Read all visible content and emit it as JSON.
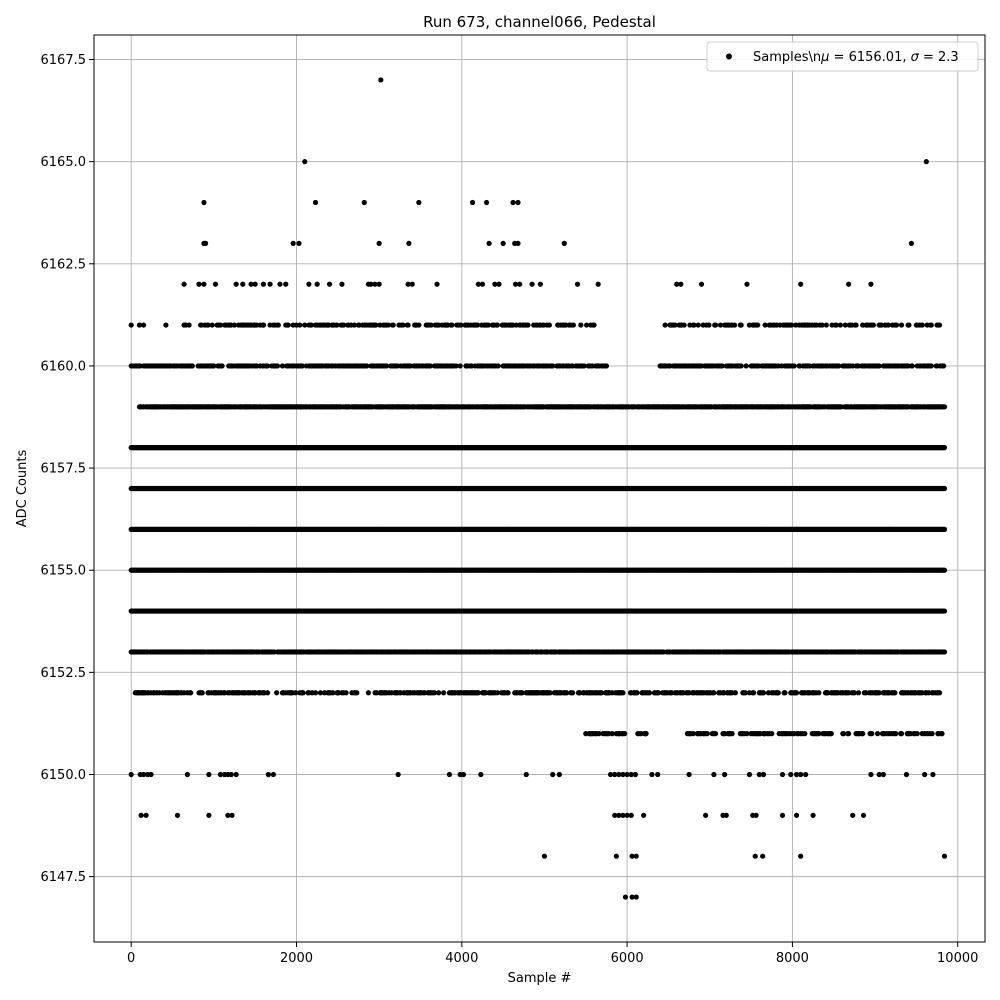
{
  "chart_data": {
    "type": "scatter",
    "title": "Run 673, channel066, Pedestal",
    "xlabel": "Sample #",
    "ylabel": "ADC Counts",
    "xlim": [
      -450,
      10330
    ],
    "ylim": [
      6145.9,
      6168.1
    ],
    "xticks": [
      0,
      2000,
      4000,
      6000,
      8000,
      10000
    ],
    "xtick_labels": [
      "0",
      "2000",
      "4000",
      "6000",
      "8000",
      "10000"
    ],
    "yticks": [
      6147.5,
      6150.0,
      6152.5,
      6155.0,
      6157.5,
      6160.0,
      6162.5,
      6165.0,
      6167.5
    ],
    "ytick_labels": [
      "6147.5",
      "6150.0",
      "6152.5",
      "6155.0",
      "6157.5",
      "6160.0",
      "6162.5",
      "6165.0",
      "6167.5"
    ],
    "grid": true,
    "legend": {
      "placement": "top-right",
      "text_main": "Samples\\n",
      "text_mu": "μ",
      "text_rest": " = 6156.01, ",
      "text_sigma": "σ",
      "text_end": " = 2.3"
    },
    "marker_color": "#000000",
    "grid_color": "#b0b0b0",
    "series": [
      {
        "name": "Samples",
        "n_samples": 9850,
        "mean": 6156.01,
        "sigma": 2.3,
        "dense_levels": [
          {
            "y": 6152,
            "x_ranges": [
              [
                40,
                9840
              ]
            ],
            "density": 0.45
          },
          {
            "y": 6153,
            "x_ranges": [
              [
                0,
                9840
              ]
            ],
            "density": 0.85
          },
          {
            "y": 6154,
            "x_ranges": [
              [
                0,
                9840
              ]
            ],
            "density": 1.0
          },
          {
            "y": 6155,
            "x_ranges": [
              [
                0,
                9840
              ]
            ],
            "density": 1.0
          },
          {
            "y": 6156,
            "x_ranges": [
              [
                0,
                9840
              ]
            ],
            "density": 1.0
          },
          {
            "y": 6157,
            "x_ranges": [
              [
                0,
                9840
              ]
            ],
            "density": 1.0
          },
          {
            "y": 6158,
            "x_ranges": [
              [
                0,
                9840
              ]
            ],
            "density": 1.0
          },
          {
            "y": 6159,
            "x_ranges": [
              [
                100,
                9840
              ]
            ],
            "density": 0.85
          },
          {
            "y": 6160,
            "x_ranges": [
              [
                0,
                5750
              ],
              [
                6400,
                9840
              ]
            ],
            "density": 0.55
          },
          {
            "y": 6161,
            "x_ranges": [
              [
                640,
                5600
              ],
              [
                6450,
                9800
              ]
            ],
            "density": 0.35
          },
          {
            "y": 6151,
            "x_ranges": [
              [
                5500,
                6400
              ],
              [
                6700,
                9840
              ]
            ],
            "density": 0.3
          }
        ],
        "points": [
          [
            0,
            6161
          ],
          [
            100,
            6161
          ],
          [
            150,
            6161
          ],
          [
            420,
            6161
          ],
          [
            1210,
            6161
          ],
          [
            1420,
            6161
          ],
          [
            1600,
            6161
          ],
          [
            2370,
            6161
          ],
          [
            3270,
            6161
          ],
          [
            4040,
            6161
          ],
          [
            4080,
            6161
          ],
          [
            4600,
            6161
          ],
          [
            4900,
            6161
          ],
          [
            0,
            6150
          ],
          [
            110,
            6150
          ],
          [
            150,
            6150
          ],
          [
            200,
            6150
          ],
          [
            240,
            6150
          ],
          [
            680,
            6150
          ],
          [
            940,
            6150
          ],
          [
            1080,
            6150
          ],
          [
            1130,
            6150
          ],
          [
            1170,
            6150
          ],
          [
            1210,
            6150
          ],
          [
            1270,
            6150
          ],
          [
            1660,
            6150
          ],
          [
            1720,
            6150
          ],
          [
            3230,
            6150
          ],
          [
            3850,
            6150
          ],
          [
            3980,
            6150
          ],
          [
            4020,
            6150
          ],
          [
            4230,
            6150
          ],
          [
            4780,
            6150
          ],
          [
            5100,
            6150
          ],
          [
            5180,
            6150
          ],
          [
            5800,
            6150
          ],
          [
            5850,
            6150
          ],
          [
            5900,
            6150
          ],
          [
            5950,
            6150
          ],
          [
            6000,
            6150
          ],
          [
            6050,
            6150
          ],
          [
            6100,
            6150
          ],
          [
            6300,
            6150
          ],
          [
            6370,
            6150
          ],
          [
            6750,
            6150
          ],
          [
            7050,
            6150
          ],
          [
            7180,
            6150
          ],
          [
            7480,
            6150
          ],
          [
            7600,
            6150
          ],
          [
            7650,
            6150
          ],
          [
            7880,
            6150
          ],
          [
            7980,
            6150
          ],
          [
            8050,
            6150
          ],
          [
            8100,
            6150
          ],
          [
            8160,
            6150
          ],
          [
            8950,
            6150
          ],
          [
            9050,
            6150
          ],
          [
            9100,
            6150
          ],
          [
            9380,
            6150
          ],
          [
            9600,
            6150
          ],
          [
            9700,
            6150
          ],
          [
            120,
            6149
          ],
          [
            180,
            6149
          ],
          [
            560,
            6149
          ],
          [
            940,
            6149
          ],
          [
            1170,
            6149
          ],
          [
            1220,
            6149
          ],
          [
            5850,
            6149
          ],
          [
            5900,
            6149
          ],
          [
            5950,
            6149
          ],
          [
            6000,
            6149
          ],
          [
            6050,
            6149
          ],
          [
            6200,
            6149
          ],
          [
            6950,
            6149
          ],
          [
            7160,
            6149
          ],
          [
            7200,
            6149
          ],
          [
            7520,
            6149
          ],
          [
            7560,
            6149
          ],
          [
            7880,
            6149
          ],
          [
            8050,
            6149
          ],
          [
            8250,
            6149
          ],
          [
            8730,
            6149
          ],
          [
            8860,
            6149
          ],
          [
            5000,
            6148
          ],
          [
            5870,
            6148
          ],
          [
            6060,
            6148
          ],
          [
            6110,
            6148
          ],
          [
            7550,
            6148
          ],
          [
            7640,
            6148
          ],
          [
            8100,
            6148
          ],
          [
            9840,
            6148
          ],
          [
            5980,
            6147
          ],
          [
            6060,
            6147
          ],
          [
            6110,
            6147
          ],
          [
            640,
            6162
          ],
          [
            820,
            6162
          ],
          [
            880,
            6162
          ],
          [
            1020,
            6162
          ],
          [
            1270,
            6162
          ],
          [
            1350,
            6162
          ],
          [
            1450,
            6162
          ],
          [
            1500,
            6162
          ],
          [
            1600,
            6162
          ],
          [
            1680,
            6162
          ],
          [
            1800,
            6162
          ],
          [
            1870,
            6162
          ],
          [
            2150,
            6162
          ],
          [
            2250,
            6162
          ],
          [
            2400,
            6162
          ],
          [
            2550,
            6162
          ],
          [
            2870,
            6162
          ],
          [
            2900,
            6162
          ],
          [
            2950,
            6162
          ],
          [
            3000,
            6162
          ],
          [
            3350,
            6162
          ],
          [
            3400,
            6162
          ],
          [
            3700,
            6162
          ],
          [
            4200,
            6162
          ],
          [
            4250,
            6162
          ],
          [
            4400,
            6162
          ],
          [
            4450,
            6162
          ],
          [
            4650,
            6162
          ],
          [
            4700,
            6162
          ],
          [
            4850,
            6162
          ],
          [
            4950,
            6162
          ],
          [
            5400,
            6162
          ],
          [
            5650,
            6162
          ],
          [
            6600,
            6162
          ],
          [
            6650,
            6162
          ],
          [
            6900,
            6162
          ],
          [
            7450,
            6162
          ],
          [
            8100,
            6162
          ],
          [
            8680,
            6162
          ],
          [
            8950,
            6162
          ],
          [
            880,
            6163
          ],
          [
            900,
            6163
          ],
          [
            1960,
            6163
          ],
          [
            2030,
            6163
          ],
          [
            3000,
            6163
          ],
          [
            3360,
            6163
          ],
          [
            4330,
            6163
          ],
          [
            4500,
            6163
          ],
          [
            4640,
            6163
          ],
          [
            4680,
            6163
          ],
          [
            5240,
            6163
          ],
          [
            9440,
            6163
          ],
          [
            880,
            6164
          ],
          [
            2230,
            6164
          ],
          [
            2820,
            6164
          ],
          [
            3480,
            6164
          ],
          [
            4130,
            6164
          ],
          [
            4300,
            6164
          ],
          [
            4620,
            6164
          ],
          [
            4680,
            6164
          ],
          [
            2100,
            6165
          ],
          [
            9620,
            6165
          ],
          [
            3020,
            6167
          ]
        ]
      }
    ]
  }
}
